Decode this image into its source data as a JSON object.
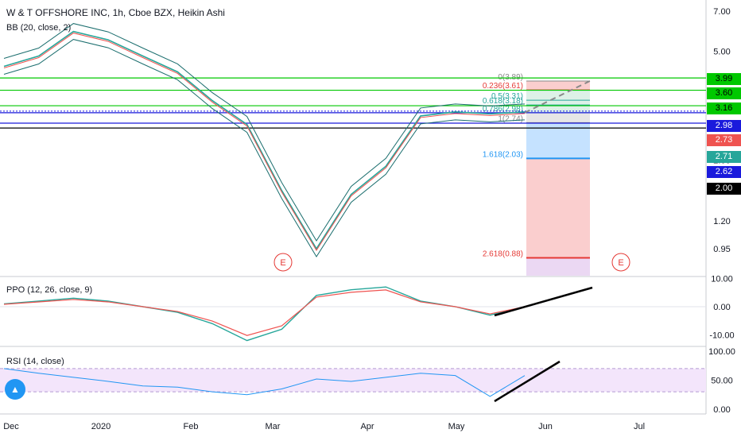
{
  "header": {
    "title": "W & T OFFSHORE INC, 1h, Cboe BZX, Heikin Ashi",
    "bb_label": "BB (20, close, 2)",
    "ppo_label": "PPO (12, 26, close, 9)",
    "rsi_label": "RSI (14, close)"
  },
  "colors": {
    "price_line": "#26a69a",
    "price_red": "#ef5350",
    "bb_band": "#1b6e6e",
    "green_line": "#00c800",
    "blue_line": "#1a1adc",
    "black_line": "#000000",
    "fib_red_zone": "#f9c9c9",
    "fib_blue_zone": "#bfdfff",
    "rsi_band": "#f3e5fb",
    "earnings": "#e53935"
  },
  "chart_data": [
    {
      "type": "line",
      "panel": "price",
      "scale": "log",
      "y_ticks": [
        "7.00",
        "5.00",
        "3.60",
        "2.00",
        "1.20",
        "0.95"
      ],
      "x_ticks": [
        "Dec",
        "2020",
        "Feb",
        "Mar",
        "Apr",
        "May",
        "Jun",
        "Jul"
      ],
      "price_series": {
        "name": "W & T OFFSHORE INC",
        "x": [
          "Dec",
          "mid-Dec",
          "2020",
          "mid-Jan",
          "Feb",
          "mid-Feb",
          "Mar",
          "early-Mar",
          "mid-Mar",
          "late-Mar",
          "Apr",
          "mid-Apr",
          "late-Apr",
          "May",
          "mid-May",
          "late-May"
        ],
        "values": [
          4.4,
          4.8,
          5.9,
          5.5,
          4.8,
          4.2,
          3.3,
          2.7,
          1.55,
          0.95,
          1.5,
          1.9,
          2.9,
          3.0,
          2.95,
          3.0
        ]
      },
      "horizontal_lines": [
        {
          "price": 3.99,
          "color": "#00c800"
        },
        {
          "price": 3.6,
          "color": "#00c800"
        },
        {
          "price": 3.16,
          "color": "#00c800"
        },
        {
          "price": 2.98,
          "color": "#1a1adc"
        },
        {
          "price": 2.73,
          "color": "#1a1adc"
        },
        {
          "price": 2.62,
          "color": "#000000"
        }
      ],
      "fib_levels": [
        {
          "label": "0(3.89)",
          "price": 3.89
        },
        {
          "label": "0.236(3.61)",
          "price": 3.61
        },
        {
          "label": "0.5(3.31)",
          "price": 3.31
        },
        {
          "label": "0.618(3.18)",
          "price": 3.18
        },
        {
          "label": "0.786(2.98)",
          "price": 2.98
        },
        {
          "label": "1(2.74)",
          "price": 2.74
        },
        {
          "label": "1.618(2.03)",
          "price": 2.03
        },
        {
          "label": "2.618(0.88)",
          "price": 0.88
        }
      ],
      "price_badges": [
        {
          "text": "3.99",
          "bg": "#00c800",
          "fg": "#000000"
        },
        {
          "text": "3.60",
          "bg": "#00c800",
          "fg": "#000000"
        },
        {
          "text": "3.16",
          "bg": "#00c800",
          "fg": "#000000"
        },
        {
          "text": "2.98",
          "bg": "#1a1adc",
          "fg": "#ffffff"
        },
        {
          "text": "2.73",
          "bg": "#ef5350",
          "fg": "#ffffff"
        },
        {
          "text": "2.71",
          "bg": "#26a69a",
          "fg": "#ffffff"
        },
        {
          "text": "2.62",
          "bg": "#1a1adc",
          "fg": "#ffffff"
        },
        {
          "text": "2.00",
          "bg": "#000000",
          "fg": "#ffffff"
        }
      ],
      "earnings_markers": [
        "E",
        "E"
      ]
    },
    {
      "type": "line",
      "panel": "PPO",
      "y_ticks": [
        "10.00",
        "0.00",
        "-10.00"
      ],
      "series": [
        {
          "name": "PPO",
          "values": [
            1,
            2,
            3,
            2,
            0,
            -2,
            -6,
            -12,
            -8,
            4,
            6,
            7,
            2,
            0,
            -3,
            0
          ]
        }
      ]
    },
    {
      "type": "line",
      "panel": "RSI",
      "y_ticks": [
        "100.00",
        "50.00",
        "0.00"
      ],
      "band": [
        30,
        70
      ],
      "series": [
        {
          "name": "RSI",
          "values": [
            70,
            62,
            55,
            48,
            40,
            38,
            30,
            25,
            35,
            52,
            48,
            55,
            62,
            58,
            22,
            58
          ]
        }
      ]
    }
  ]
}
